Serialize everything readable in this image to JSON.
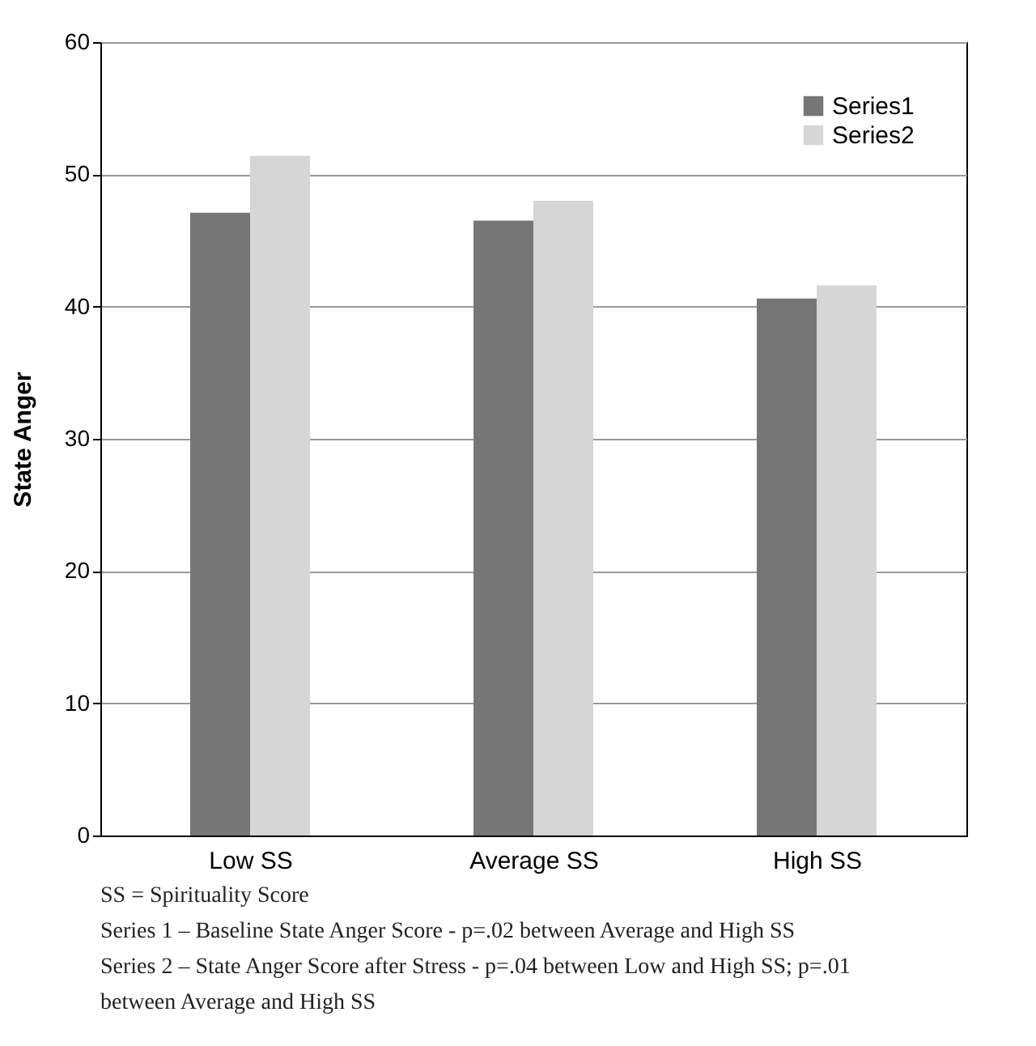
{
  "chart_data": {
    "type": "bar",
    "ylabel": "State Anger",
    "categories": [
      "Low SS",
      "Average SS",
      "High SS"
    ],
    "series": [
      {
        "name": "Series1",
        "color": "#767676",
        "values": [
          47.1,
          46.5,
          40.6
        ]
      },
      {
        "name": "Series2",
        "color": "#d6d6d6",
        "values": [
          51.4,
          48.0,
          41.6
        ]
      }
    ],
    "ylim": [
      0,
      60
    ],
    "yticks": [
      0,
      10,
      20,
      30,
      40,
      50,
      60
    ],
    "grid": "y",
    "legend": "top right",
    "annotations": [
      "SS = Spirituality Score",
      "Series 1 – Baseline State Anger Score - p=.02 between Average and High SS",
      "Series 2 – State Anger Score after Stress - p=.04 between Low and High SS; p=.01\n              between Average and High SS"
    ]
  }
}
